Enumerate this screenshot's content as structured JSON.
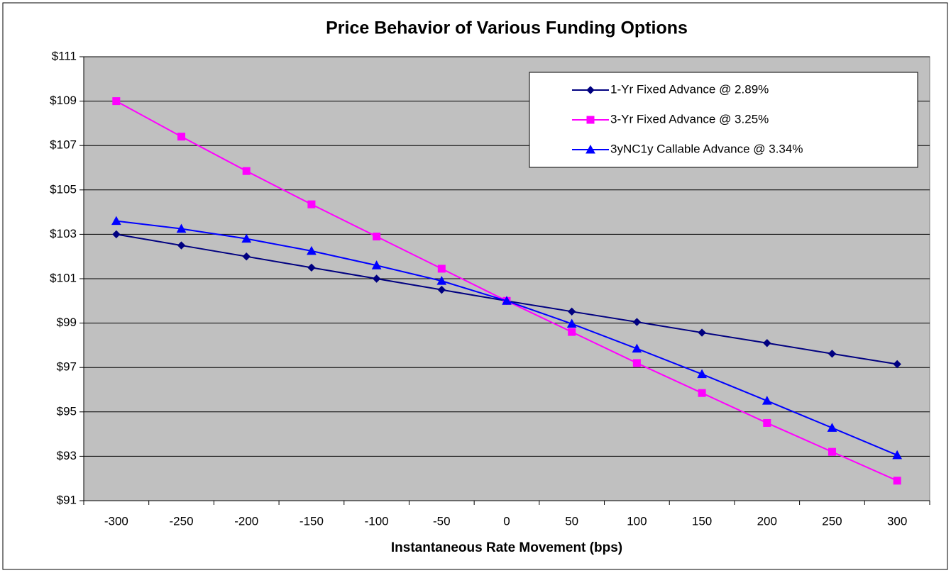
{
  "chart_data": {
    "type": "line",
    "title": "Price Behavior of Various Funding Options",
    "x_label": "Instantaneous Rate Movement (bps)",
    "categories": [
      "-300",
      "-250",
      "-200",
      "-150",
      "-100",
      "-50",
      "0",
      "50",
      "100",
      "150",
      "200",
      "250",
      "300"
    ],
    "series": [
      {
        "name": "1-Yr Fixed Advance @ 2.89%",
        "color": "#000080",
        "marker": "diamond",
        "values": [
          103.0,
          102.5,
          102.0,
          101.5,
          101.0,
          100.5,
          100.0,
          99.52,
          99.05,
          98.57,
          98.1,
          97.62,
          97.15
        ]
      },
      {
        "name": "3-Yr Fixed Advance @ 3.25%",
        "color": "#ff00ff",
        "marker": "square",
        "values": [
          109.0,
          107.4,
          105.85,
          104.35,
          102.9,
          101.45,
          100.0,
          98.6,
          97.2,
          95.85,
          94.5,
          93.2,
          91.9
        ]
      },
      {
        "name": "3yNC1y Callable Advance @ 3.34%",
        "color": "#0000ff",
        "marker": "triangle",
        "values": [
          103.6,
          103.25,
          102.8,
          102.25,
          101.6,
          100.9,
          100.0,
          98.97,
          97.85,
          96.7,
          95.5,
          94.28,
          93.05
        ]
      }
    ],
    "ylim": [
      91,
      111
    ],
    "yticks": [
      {
        "value": 91,
        "label": "$91"
      },
      {
        "value": 93,
        "label": "$93"
      },
      {
        "value": 95,
        "label": "$95"
      },
      {
        "value": 97,
        "label": "$97"
      },
      {
        "value": 99,
        "label": "$99"
      },
      {
        "value": 101,
        "label": "$101"
      },
      {
        "value": 103,
        "label": "$103"
      },
      {
        "value": 105,
        "label": "$105"
      },
      {
        "value": 107,
        "label": "$107"
      },
      {
        "value": 109,
        "label": "$109"
      },
      {
        "value": 111,
        "label": "$111"
      }
    ],
    "grid": true,
    "legend": "top-right"
  }
}
